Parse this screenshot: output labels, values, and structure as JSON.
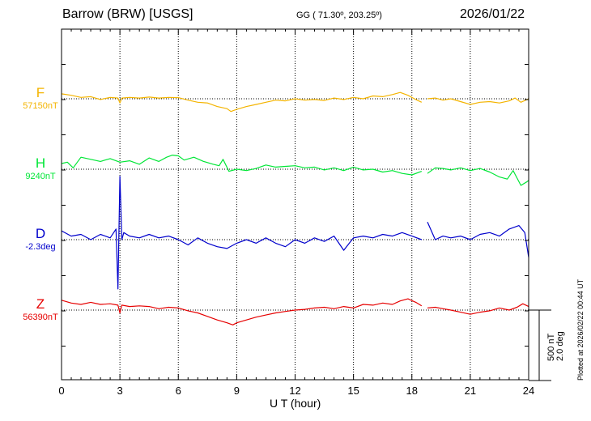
{
  "header": {
    "station": "Barrow (BRW)  [USGS]",
    "coords": "GG ( 71.30º, 203.25º)",
    "date": "2026/01/22"
  },
  "footer": {
    "xlabel": "U T (hour)",
    "plotted": "Plotted at 2026/02/22 00:44 UT"
  },
  "scale": {
    "nt": "500 nT",
    "deg": "2.0 deg"
  },
  "chart_data": {
    "type": "line",
    "title": "Barrow (BRW)  [USGS]",
    "xlabel": "U T (hour)",
    "xlim": [
      0,
      24
    ],
    "xticks": [
      "0",
      "3",
      "6",
      "9",
      "12",
      "15",
      "18",
      "21",
      "24"
    ],
    "scale_bar": {
      "nT": 500,
      "deg": 2.0
    },
    "data_gap_hours": [
      18.5,
      18.8
    ],
    "series": [
      {
        "name": "F",
        "baseline_label": "57150nT",
        "color": "#f4b400",
        "unit": "nT",
        "x": [
          0,
          0.5,
          1,
          1.5,
          2,
          2.5,
          2.9,
          3.0,
          3.1,
          3.5,
          4,
          4.5,
          5,
          5.5,
          6,
          6.5,
          7,
          7.5,
          8,
          8.5,
          8.7,
          9,
          9.5,
          10,
          10.5,
          11,
          11.5,
          12,
          12.5,
          13,
          13.5,
          14,
          14.5,
          15,
          15.5,
          16,
          16.5,
          17,
          17.4,
          17.8,
          18.2,
          18.5,
          18.8,
          19.2,
          19.6,
          20,
          20.5,
          21,
          21.5,
          22,
          22.5,
          23,
          23.3,
          23.6,
          24
        ],
        "values": [
          35,
          25,
          10,
          15,
          -5,
          10,
          5,
          -30,
          5,
          10,
          5,
          12,
          5,
          10,
          8,
          -10,
          -25,
          -30,
          -55,
          -70,
          -90,
          -75,
          -55,
          -40,
          -25,
          -10,
          -15,
          0,
          -10,
          -5,
          -12,
          5,
          -5,
          10,
          0,
          20,
          15,
          30,
          45,
          25,
          -5,
          -25,
          0,
          5,
          -10,
          0,
          -20,
          -40,
          -25,
          -20,
          -30,
          -15,
          5,
          -25,
          0
        ]
      },
      {
        "name": "H",
        "baseline_label": "9240nT",
        "color": "#00e636",
        "unit": "nT",
        "x": [
          0,
          0.3,
          0.6,
          1,
          1.5,
          2,
          2.5,
          3,
          3.5,
          4,
          4.5,
          5,
          5.4,
          5.7,
          6,
          6.3,
          6.8,
          7.3,
          7.8,
          8.1,
          8.3,
          8.6,
          9,
          9.5,
          10,
          10.5,
          11,
          11.5,
          12,
          12.5,
          13,
          13.5,
          14,
          14.5,
          15,
          15.5,
          16,
          16.5,
          17,
          17.5,
          18,
          18.5,
          18.8,
          19.2,
          19.6,
          20,
          20.5,
          21,
          21.5,
          22,
          22.5,
          22.9,
          23.2,
          23.6,
          23.9,
          24
        ],
        "values": [
          40,
          50,
          10,
          85,
          70,
          55,
          75,
          50,
          60,
          35,
          80,
          55,
          85,
          100,
          95,
          65,
          85,
          55,
          35,
          25,
          70,
          -15,
          0,
          -10,
          5,
          30,
          15,
          20,
          25,
          10,
          15,
          -5,
          10,
          -10,
          15,
          -5,
          0,
          -20,
          -10,
          -30,
          -40,
          -15,
          -30,
          10,
          5,
          -5,
          10,
          -10,
          5,
          -20,
          -55,
          -70,
          -10,
          -115,
          -90,
          -80
        ]
      },
      {
        "name": "D",
        "baseline_label": "-2.3deg",
        "color": "#0000cc",
        "unit": "deg",
        "x": [
          0,
          0.5,
          1,
          1.5,
          2,
          2.5,
          2.8,
          2.9,
          3.0,
          3.1,
          3.2,
          3.5,
          4,
          4.5,
          5,
          5.5,
          6,
          6.5,
          7,
          7.5,
          8,
          8.5,
          9,
          9.5,
          10,
          10.5,
          11,
          11.5,
          12,
          12.5,
          13,
          13.5,
          14,
          14.5,
          15,
          15.5,
          16,
          16.5,
          17,
          17.5,
          18,
          18.5,
          18.8,
          19.2,
          19.6,
          20,
          20.5,
          21,
          21.5,
          22,
          22.5,
          23,
          23.5,
          23.8,
          24
        ],
        "values": [
          0.25,
          0.1,
          0.15,
          0.0,
          0.15,
          0.05,
          0.3,
          -1.4,
          1.8,
          0.0,
          0.2,
          0.1,
          0.05,
          0.15,
          0.05,
          0.1,
          0.0,
          -0.15,
          0.05,
          -0.1,
          -0.2,
          -0.25,
          -0.1,
          0.0,
          -0.1,
          0.05,
          -0.1,
          -0.2,
          0.0,
          -0.1,
          0.05,
          -0.05,
          0.1,
          -0.3,
          0.05,
          0.1,
          0.05,
          0.15,
          0.1,
          0.2,
          0.1,
          0.0,
          0.5,
          0.0,
          0.1,
          0.05,
          0.1,
          0.0,
          0.15,
          0.2,
          0.1,
          0.3,
          0.4,
          0.2,
          -0.5
        ]
      },
      {
        "name": "Z",
        "baseline_label": "56390nT",
        "color": "#e60000",
        "unit": "nT",
        "x": [
          0,
          0.5,
          1,
          1.5,
          2,
          2.5,
          2.9,
          3.0,
          3.1,
          3.5,
          4,
          4.5,
          5,
          5.5,
          6,
          6.5,
          7,
          7.5,
          8,
          8.5,
          8.8,
          9,
          9.5,
          10,
          10.5,
          11,
          11.5,
          12,
          12.5,
          13,
          13.5,
          14,
          14.5,
          15,
          15.5,
          16,
          16.5,
          17,
          17.4,
          17.8,
          18.2,
          18.5,
          18.8,
          19.2,
          19.6,
          20,
          20.5,
          21,
          21.5,
          22,
          22.5,
          23,
          23.4,
          23.7,
          24
        ],
        "values": [
          70,
          50,
          40,
          55,
          40,
          45,
          35,
          -20,
          35,
          25,
          30,
          25,
          10,
          20,
          15,
          -5,
          -20,
          -45,
          -70,
          -90,
          -105,
          -90,
          -70,
          -50,
          -35,
          -20,
          -10,
          0,
          5,
          15,
          20,
          10,
          25,
          15,
          40,
          35,
          50,
          40,
          65,
          80,
          55,
          30,
          15,
          20,
          10,
          0,
          -15,
          -30,
          -15,
          -5,
          15,
          0,
          20,
          45,
          25
        ]
      }
    ]
  }
}
